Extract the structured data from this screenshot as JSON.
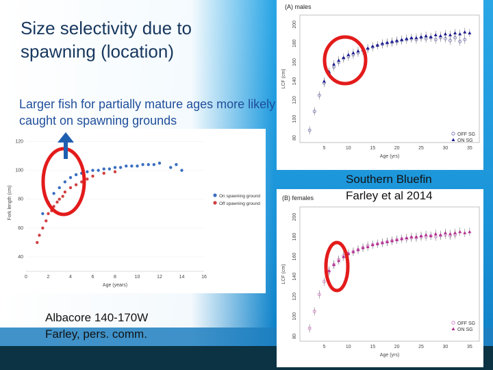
{
  "slide": {
    "title": "Size selectivity due to spawning (location)",
    "subtitle": "Larger fish for partially mature ages more likely caught on spawning grounds",
    "credit_left_line1": "Albacore 140-170W",
    "credit_left_line2": "Farley, pers. comm.",
    "credit_right_line1": "Southern Bluefin",
    "credit_right_line2": "Farley et al 2014",
    "colors": {
      "title": "#17375e",
      "subtitle": "#1f4e9a",
      "highlight_circle": "#e31b1b",
      "arrow": "#1f5fb0",
      "background_blue": "#1aa0e0",
      "band_dark": "#0b3344"
    }
  },
  "chart_data": [
    {
      "type": "scatter",
      "panel_title": "(A) males",
      "xlabel": "Age (yrs)",
      "ylabel": "LCF (cm)",
      "xlim": [
        0,
        37
      ],
      "ylim": [
        75,
        210
      ],
      "xticks": [
        5,
        10,
        15,
        20,
        25,
        30,
        35
      ],
      "yticks": [
        80,
        100,
        120,
        140,
        160,
        180,
        200
      ],
      "legend": [
        "OFF SG",
        "ON SG"
      ],
      "legend_position": "bottom-right",
      "series": [
        {
          "name": "OFF SG",
          "color": "#6b6bb0",
          "x": [
            2,
            3,
            4,
            5,
            6,
            7,
            8,
            9,
            10,
            11,
            12,
            13,
            14,
            15,
            16,
            17,
            18,
            19,
            20,
            21,
            22,
            23,
            24,
            25,
            26,
            27,
            28,
            29,
            30,
            31,
            32,
            33,
            34
          ],
          "y": [
            88,
            108,
            125,
            138,
            148,
            155,
            160,
            164,
            166,
            168,
            170,
            172,
            174,
            176,
            178,
            179,
            180,
            181,
            182,
            183,
            184,
            185,
            184,
            186,
            185,
            186,
            184,
            186,
            185,
            183,
            186,
            182,
            184
          ]
        },
        {
          "name": "ON SG",
          "color": "#1a1a8f",
          "x": [
            5,
            6,
            7,
            8,
            9,
            10,
            11,
            12,
            13,
            14,
            15,
            16,
            17,
            18,
            19,
            20,
            21,
            22,
            23,
            24,
            25,
            26,
            27,
            28,
            29,
            30,
            31,
            32,
            33,
            34,
            35
          ],
          "y": [
            140,
            150,
            158,
            162,
            165,
            168,
            170,
            172,
            174,
            175,
            177,
            178,
            180,
            181,
            182,
            183,
            184,
            185,
            186,
            186,
            187,
            188,
            187,
            189,
            188,
            190,
            189,
            191,
            190,
            192,
            191
          ]
        }
      ]
    },
    {
      "type": "scatter",
      "panel_title": "(B) females",
      "xlabel": "Age (yrs)",
      "ylabel": "LCF (cm)",
      "xlim": [
        0,
        37
      ],
      "ylim": [
        75,
        210
      ],
      "xticks": [
        5,
        10,
        15,
        20,
        25,
        30,
        35
      ],
      "yticks": [
        80,
        100,
        120,
        140,
        160,
        180,
        200
      ],
      "legend": [
        "OFF SG",
        "ON SG"
      ],
      "legend_position": "bottom-right",
      "series": [
        {
          "name": "OFF SG",
          "color": "#d070c0",
          "x": [
            2,
            3,
            4,
            5,
            6,
            7,
            8,
            9,
            10,
            11,
            12,
            13,
            14,
            15,
            16,
            17,
            18,
            19,
            20,
            21,
            22,
            23,
            24,
            25,
            26,
            27,
            28,
            29,
            30,
            31,
            32
          ],
          "y": [
            88,
            105,
            122,
            135,
            145,
            152,
            157,
            161,
            163,
            165,
            167,
            169,
            171,
            172,
            173,
            174,
            175,
            176,
            177,
            178,
            178,
            179,
            179,
            180,
            180,
            181,
            180,
            181,
            182,
            181,
            182
          ]
        },
        {
          "name": "ON SG",
          "color": "#b0308f",
          "x": [
            6,
            7,
            8,
            9,
            10,
            11,
            12,
            13,
            14,
            15,
            16,
            17,
            18,
            19,
            20,
            21,
            22,
            23,
            24,
            25,
            26,
            27,
            28,
            29,
            30,
            31,
            32,
            33,
            34,
            35
          ],
          "y": [
            146,
            152,
            156,
            160,
            163,
            165,
            167,
            169,
            170,
            172,
            173,
            174,
            175,
            176,
            177,
            178,
            179,
            180,
            180,
            181,
            182,
            181,
            183,
            182,
            184,
            183,
            184,
            185,
            184,
            185
          ]
        }
      ]
    },
    {
      "type": "scatter",
      "xlabel": "Age (years)",
      "ylabel": "Fork length (cm)",
      "xlim": [
        0,
        16
      ],
      "ylim": [
        30,
        125
      ],
      "xticks": [
        0,
        2,
        4,
        6,
        8,
        10,
        12,
        14,
        16
      ],
      "yticks": [
        40,
        60,
        80,
        100,
        120
      ],
      "legend": [
        "On spawning ground",
        "Off spawning ground"
      ],
      "legend_position": "right",
      "series": [
        {
          "name": "On spawning ground",
          "color": "#3a6ec0",
          "x": [
            1.5,
            2.0,
            2.5,
            3.0,
            3.5,
            4.0,
            4.5,
            5.0,
            5.5,
            6.0,
            6.5,
            7.0,
            7.5,
            8.0,
            8.5,
            9.0,
            9.5,
            10.0,
            10.5,
            11.0,
            11.5,
            12.0,
            13.0,
            13.5,
            14.0
          ],
          "y": [
            70,
            78,
            84,
            88,
            92,
            95,
            97,
            98,
            99,
            100,
            100,
            101,
            101,
            102,
            102,
            103,
            103,
            103,
            104,
            104,
            104,
            105,
            102,
            104,
            100
          ]
        },
        {
          "name": "Off spawning ground",
          "color": "#d04040",
          "x": [
            1.0,
            1.2,
            1.5,
            1.8,
            2.0,
            2.3,
            2.5,
            2.8,
            3.0,
            3.3,
            3.5,
            4.0,
            4.5,
            5.0,
            5.5,
            6.0,
            7.0,
            8.0
          ],
          "y": [
            50,
            55,
            60,
            65,
            70,
            72,
            75,
            78,
            80,
            82,
            85,
            88,
            90,
            92,
            94,
            96,
            98,
            99
          ]
        }
      ]
    }
  ]
}
